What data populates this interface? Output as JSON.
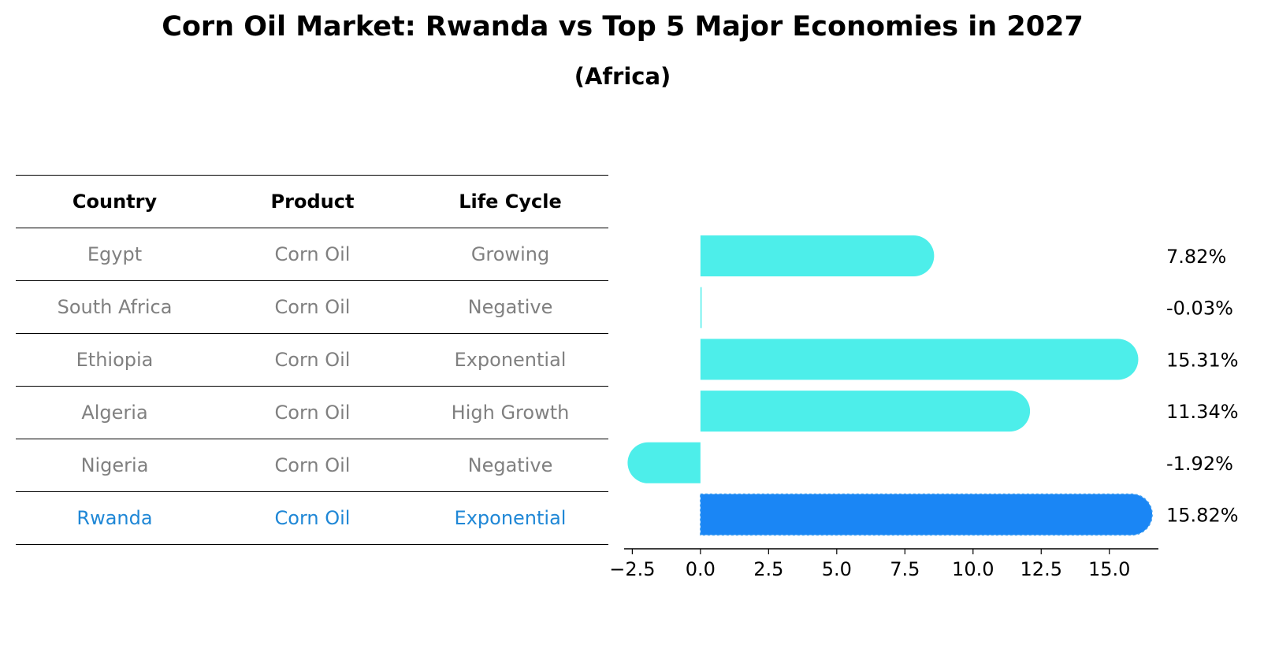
{
  "header": {
    "title": "Corn Oil Market: Rwanda vs Top 5 Major Economies in 2027",
    "subtitle": "(Africa)"
  },
  "table": {
    "columns": [
      "Country",
      "Product",
      "Life Cycle"
    ],
    "rows": [
      [
        "Egypt",
        "Corn Oil",
        "Growing"
      ],
      [
        "South Africa",
        "Corn Oil",
        "Negative"
      ],
      [
        "Ethiopia",
        "Corn Oil",
        "Exponential"
      ],
      [
        "Algeria",
        "Corn Oil",
        "High Growth"
      ],
      [
        "Nigeria",
        "Corn Oil",
        "Negative"
      ],
      [
        "Rwanda",
        "Corn Oil",
        "Exponential"
      ]
    ],
    "highlight_row": 5
  },
  "chart_data": {
    "type": "bar",
    "orientation": "horizontal",
    "categories": [
      "Egypt",
      "South Africa",
      "Ethiopia",
      "Algeria",
      "Nigeria",
      "Rwanda"
    ],
    "values": [
      7.82,
      -0.03,
      15.31,
      11.34,
      -1.92,
      15.82
    ],
    "value_labels": [
      "7.82%",
      "-0.03%",
      "15.31%",
      "11.34%",
      "-1.92%",
      "15.82%"
    ],
    "highlight_index": 5,
    "xlim": [
      -2.8,
      16.8
    ],
    "xticks": [
      -2.5,
      0.0,
      2.5,
      5.0,
      7.5,
      10.0,
      12.5,
      15.0
    ],
    "xtick_labels": [
      "−2.5",
      "0.0",
      "2.5",
      "5.0",
      "7.5",
      "10.0",
      "12.5",
      "15.0"
    ],
    "grid": false,
    "colors": {
      "bar": "#4deeea",
      "highlight": "#1a86f5",
      "highlight_text": "#1f87d6",
      "muted_text": "#808080"
    }
  }
}
